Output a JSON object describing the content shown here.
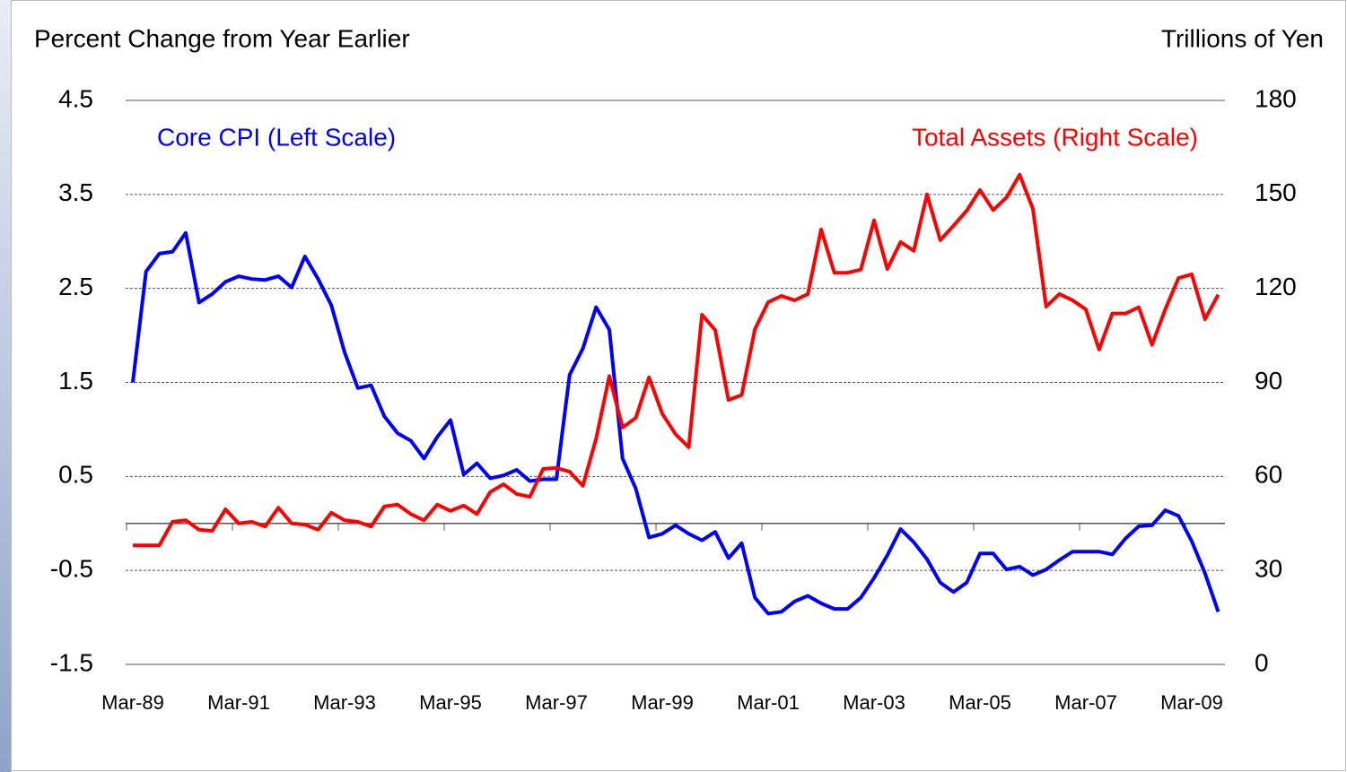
{
  "chart_data": {
    "type": "line",
    "y_label": "Percent Change from Year Earlier",
    "y2_label": "Trillions of Yen",
    "categories": [
      "Mar-89",
      null,
      null,
      null,
      null,
      null,
      null,
      null,
      "Mar-91",
      null,
      null,
      null,
      null,
      null,
      null,
      null,
      "Mar-93",
      null,
      null,
      null,
      null,
      null,
      null,
      null,
      "Mar-95",
      null,
      null,
      null,
      null,
      null,
      null,
      null,
      "Mar-97",
      null,
      null,
      null,
      null,
      null,
      null,
      null,
      "Mar-99",
      null,
      null,
      null,
      null,
      null,
      null,
      null,
      "Mar-01",
      null,
      null,
      null,
      null,
      null,
      null,
      null,
      "Mar-03",
      null,
      null,
      null,
      null,
      null,
      null,
      null,
      "Mar-05",
      null,
      null,
      null,
      null,
      null,
      null,
      null,
      "Mar-07",
      null,
      null,
      null,
      null,
      null,
      null,
      null,
      "Mar-09",
      null,
      null
    ],
    "series": [
      {
        "name": "Core CPI (Left Scale)",
        "color": "#0000ff",
        "axis": "y",
        "values": [
          1.5,
          2.68,
          2.87,
          2.89,
          3.09,
          2.35,
          2.44,
          2.57,
          2.63,
          2.6,
          2.59,
          2.63,
          2.51,
          2.84,
          2.6,
          2.32,
          1.82,
          1.44,
          1.47,
          1.14,
          0.96,
          0.88,
          0.69,
          0.92,
          1.1,
          0.52,
          0.64,
          0.48,
          0.51,
          0.57,
          0.45,
          0.47,
          0.47,
          1.58,
          1.86,
          2.3,
          2.06,
          0.69,
          0.37,
          -0.15,
          -0.11,
          -0.02,
          -0.11,
          -0.18,
          -0.09,
          -0.37,
          -0.21,
          -0.79,
          -0.96,
          -0.94,
          -0.83,
          -0.77,
          -0.85,
          -0.91,
          -0.91,
          -0.79,
          -0.58,
          -0.34,
          -0.06,
          -0.2,
          -0.38,
          -0.63,
          -0.73,
          -0.63,
          -0.32,
          -0.32,
          -0.49,
          -0.46,
          -0.55,
          -0.49,
          -0.39,
          -0.3,
          -0.3,
          -0.3,
          -0.33,
          -0.16,
          -0.03,
          -0.02,
          0.14,
          0.08,
          -0.19,
          -0.53,
          -0.94
        ]
      },
      {
        "name": "Total Assets (Right Scale)",
        "color": "#ff0000",
        "axis": "y2",
        "values": [
          38,
          38,
          38,
          45.5,
          46,
          43,
          42.6,
          49.5,
          45,
          45.5,
          44,
          50,
          45,
          44.6,
          43,
          48.4,
          46,
          45.5,
          44,
          50.4,
          51,
          48,
          46,
          51,
          49,
          50.7,
          48,
          55,
          57.5,
          54.4,
          53.5,
          62.4,
          62.7,
          61.5,
          57,
          72,
          92,
          75.6,
          78.7,
          91.6,
          80,
          73.5,
          69.3,
          111.6,
          106.7,
          84.4,
          86,
          107,
          115.6,
          117.6,
          116.2,
          118.2,
          138.8,
          125,
          125,
          126,
          141.7,
          126.2,
          134.8,
          132,
          150,
          135.4,
          140,
          144.8,
          151.4,
          145,
          149,
          156.3,
          145.4,
          114.2,
          118.2,
          116.2,
          113.3,
          100.5,
          112,
          112,
          114,
          102,
          113.3,
          123.3,
          124.5,
          110.2,
          118
        ]
      }
    ],
    "ylim": [
      -1.5,
      4.5
    ],
    "yticks": [
      -1.5,
      -0.5,
      0.5,
      1.5,
      2.5,
      3.5,
      4.5
    ],
    "y2lim": [
      0,
      180
    ],
    "y2ticks": [
      0,
      30,
      60,
      90,
      120,
      150,
      180
    ],
    "grid": true
  }
}
